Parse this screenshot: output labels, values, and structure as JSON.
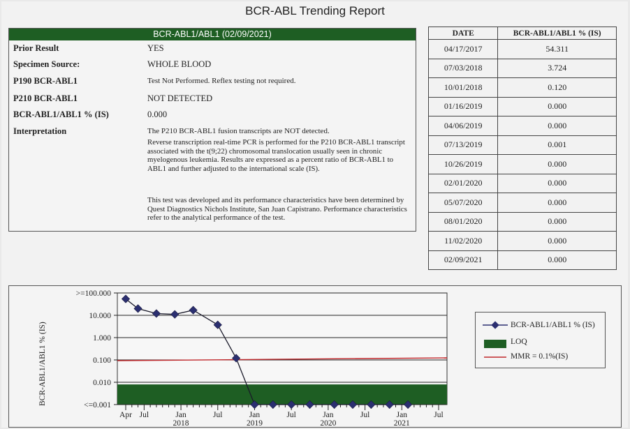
{
  "report_title": "BCR-ABL Trending Report",
  "result": {
    "header": "BCR-ABL1/ABL1 (02/09/2021)",
    "rows": [
      {
        "label": "Prior Result",
        "value": "YES"
      },
      {
        "label": "Specimen Source:",
        "value": "WHOLE BLOOD"
      },
      {
        "label": "P190 BCR-ABL1",
        "value": "Test Not Performed. Reflex testing not required."
      },
      {
        "label": "P210 BCR-ABL1",
        "value": "NOT DETECTED"
      },
      {
        "label": "BCR-ABL1/ABL1 % (IS)",
        "value": "0.000"
      },
      {
        "label": "Interpretation",
        "value": "The P210 BCR-ABL1 fusion transcripts are NOT detected."
      }
    ],
    "para1": "Reverse transcription real-time PCR is performed for the P210 BCR-ABL1 transcript associated with the t(9;22) chromosomal translocation usually seen in chronic myelogenous leukemia. Results are expressed as a percent ratio of BCR-ABL1 to ABL1 and further adjusted to the international scale (IS).",
    "para2": "This test was developed and its performance characteristics have been determined by Quest Diagnostics Nichols Institute, San Juan Capistrano. Performance characteristics refer to the analytical performance of the test."
  },
  "history_table": {
    "headers": [
      "DATE",
      "BCR-ABL1/ABL1 % (IS)"
    ],
    "rows": [
      [
        "04/17/2017",
        "54.311"
      ],
      [
        "07/03/2018",
        "3.724"
      ],
      [
        "10/01/2018",
        "0.120"
      ],
      [
        "01/16/2019",
        "0.000"
      ],
      [
        "04/06/2019",
        "0.000"
      ],
      [
        "07/13/2019",
        "0.001"
      ],
      [
        "10/26/2019",
        "0.000"
      ],
      [
        "02/01/2020",
        "0.000"
      ],
      [
        "05/07/2020",
        "0.000"
      ],
      [
        "08/01/2020",
        "0.000"
      ],
      [
        "11/02/2020",
        "0.000"
      ],
      [
        "02/09/2021",
        "0.000"
      ]
    ]
  },
  "chart_data": {
    "type": "line",
    "ylabel": "BCR-ABL1/ABL1 % (IS)",
    "y_scale": "log",
    "ytick_labels": [
      ">=100.000",
      "10.000",
      "1.000",
      "0.100",
      "0.010",
      "<=0.001"
    ],
    "yticks": [
      100,
      10,
      1,
      0.1,
      0.01,
      0.001
    ],
    "xtick_labels": [
      {
        "month": "Apr",
        "year": ""
      },
      {
        "month": "Jul",
        "year": ""
      },
      {
        "month": "Jan",
        "year": "2018"
      },
      {
        "month": "Jul",
        "year": ""
      },
      {
        "month": "Jan",
        "year": "2019"
      },
      {
        "month": "Jul",
        "year": ""
      },
      {
        "month": "Jan",
        "year": "2020"
      },
      {
        "month": "Jul",
        "year": ""
      },
      {
        "month": "Jan",
        "year": "2021"
      },
      {
        "month": "Jul",
        "year": ""
      }
    ],
    "xtick_dates": [
      "2017-04",
      "2017-07",
      "2018-01",
      "2018-07",
      "2019-01",
      "2019-07",
      "2020-01",
      "2020-07",
      "2021-01",
      "2021-07"
    ],
    "series": [
      {
        "name": "BCR-ABL1/ABL1 % (IS)",
        "color": "#2b2f70",
        "points": [
          {
            "x": "2017-04",
            "y": 54.311
          },
          {
            "x": "2017-06",
            "y": 20
          },
          {
            "x": "2017-09",
            "y": 12
          },
          {
            "x": "2017-12",
            "y": 11
          },
          {
            "x": "2018-03",
            "y": 17
          },
          {
            "x": "2018-07",
            "y": 3.724
          },
          {
            "x": "2018-10",
            "y": 0.12
          },
          {
            "x": "2019-01",
            "y": 0.001
          },
          {
            "x": "2019-04",
            "y": 0.001
          },
          {
            "x": "2019-07",
            "y": 0.001
          },
          {
            "x": "2019-10",
            "y": 0.001
          },
          {
            "x": "2020-02",
            "y": 0.001
          },
          {
            "x": "2020-05",
            "y": 0.001
          },
          {
            "x": "2020-08",
            "y": 0.001
          },
          {
            "x": "2020-11",
            "y": 0.001
          },
          {
            "x": "2021-02",
            "y": 0.001
          }
        ]
      }
    ],
    "loq": {
      "name": "LOQ",
      "color": "#1e5e23",
      "upper": 0.008
    },
    "mmr": {
      "name": "MMR = 0.1%(IS)",
      "color": "#c0262a",
      "value": 0.1
    },
    "legend_position": "right"
  }
}
